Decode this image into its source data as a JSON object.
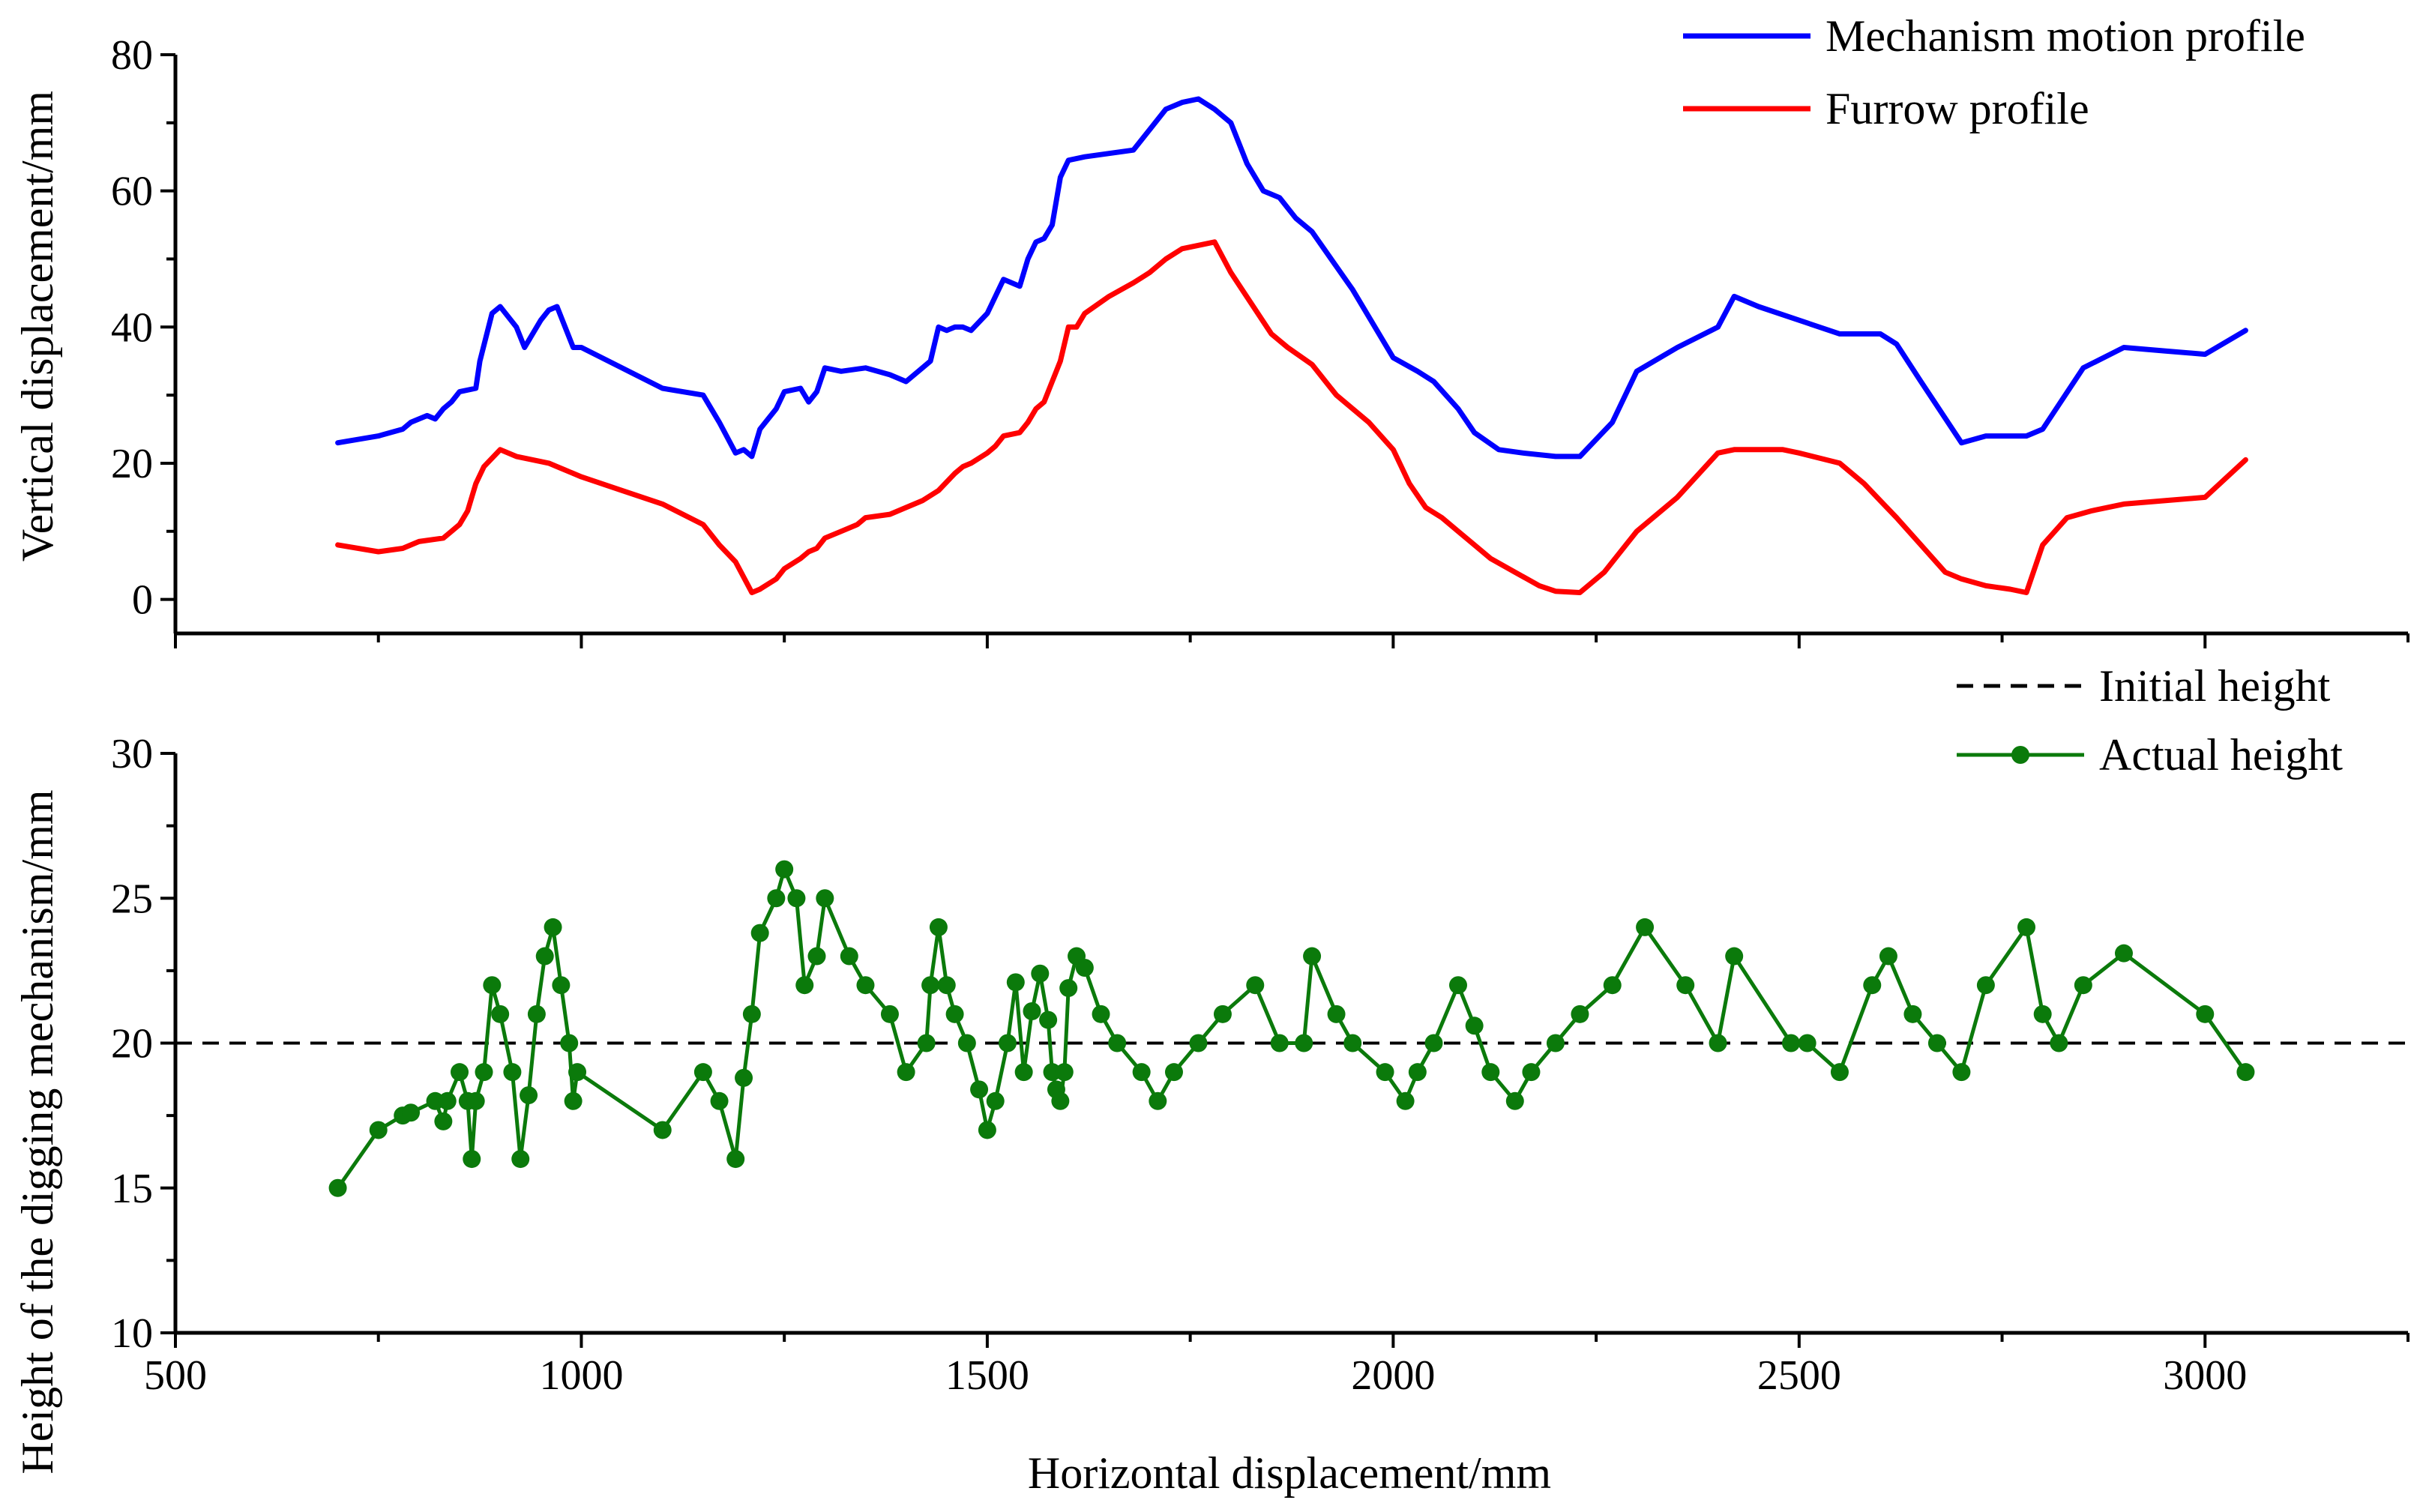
{
  "chart_data": [
    {
      "type": "line",
      "panel": "top",
      "xlabel": "",
      "ylabel": "Vertical displacement/mm",
      "xlim": [
        500,
        3250
      ],
      "ylim": [
        -5,
        80
      ],
      "yticks": [
        0,
        20,
        40,
        60,
        80
      ],
      "legend_position": "top-right",
      "series": [
        {
          "name": "Mechanism motion profile",
          "color": "#0000ff",
          "x": [
            700,
            750,
            780,
            790,
            810,
            820,
            830,
            840,
            850,
            870,
            875,
            890,
            900,
            920,
            930,
            950,
            960,
            970,
            980,
            990,
            1000,
            1050,
            1100,
            1150,
            1170,
            1190,
            1200,
            1210,
            1220,
            1240,
            1250,
            1270,
            1280,
            1290,
            1300,
            1320,
            1350,
            1380,
            1400,
            1420,
            1430,
            1440,
            1450,
            1460,
            1470,
            1480,
            1500,
            1520,
            1540,
            1550,
            1560,
            1570,
            1580,
            1590,
            1600,
            1620,
            1650,
            1680,
            1700,
            1720,
            1740,
            1760,
            1780,
            1800,
            1820,
            1840,
            1860,
            1880,
            1900,
            1950,
            2000,
            2030,
            2050,
            2080,
            2100,
            2130,
            2160,
            2200,
            2230,
            2270,
            2300,
            2350,
            2400,
            2420,
            2450,
            2500,
            2550,
            2600,
            2620,
            2650,
            2700,
            2730,
            2760,
            2780,
            2800,
            2850,
            2900,
            2950,
            3000,
            3050
          ],
          "y": [
            23,
            24,
            25,
            26,
            27,
            26.5,
            28,
            29,
            30.5,
            31,
            35,
            42,
            43,
            40,
            37,
            41,
            42.5,
            43,
            40,
            37,
            37,
            34,
            31,
            30,
            26,
            21.5,
            22,
            21,
            25,
            28,
            30.5,
            31,
            29,
            30.5,
            34,
            33.5,
            34,
            33,
            32,
            34,
            35,
            40,
            39.5,
            40,
            40,
            39.5,
            42,
            47,
            46,
            50,
            52.5,
            53,
            55,
            62,
            64.5,
            65,
            65.5,
            66,
            69,
            72,
            73,
            73.5,
            72,
            70,
            64,
            60,
            59,
            56,
            54,
            45.5,
            35.5,
            33.5,
            32,
            28,
            24.5,
            22,
            21.5,
            21,
            21,
            26,
            33.5,
            37,
            40,
            44.5,
            43,
            41,
            39,
            39,
            37.5,
            32,
            23,
            24,
            24,
            24,
            25,
            34,
            37,
            36.5,
            36,
            39.5
          ]
        },
        {
          "name": "Furrow profile",
          "color": "#ff0000",
          "x": [
            700,
            750,
            780,
            800,
            830,
            840,
            850,
            860,
            870,
            880,
            900,
            920,
            940,
            960,
            970,
            980,
            1000,
            1050,
            1100,
            1150,
            1170,
            1190,
            1210,
            1220,
            1240,
            1250,
            1270,
            1280,
            1290,
            1300,
            1320,
            1340,
            1350,
            1380,
            1400,
            1420,
            1440,
            1460,
            1470,
            1480,
            1500,
            1510,
            1520,
            1540,
            1550,
            1560,
            1570,
            1580,
            1590,
            1600,
            1610,
            1620,
            1650,
            1680,
            1700,
            1720,
            1740,
            1760,
            1780,
            1800,
            1850,
            1870,
            1900,
            1930,
            1970,
            2000,
            2020,
            2040,
            2060,
            2080,
            2100,
            2120,
            2150,
            2180,
            2200,
            2230,
            2260,
            2300,
            2350,
            2400,
            2420,
            2450,
            2480,
            2500,
            2550,
            2580,
            2600,
            2620,
            2650,
            2680,
            2700,
            2730,
            2760,
            2780,
            2800,
            2830,
            2860,
            2900,
            2950,
            3000,
            3050
          ],
          "y": [
            8,
            7,
            7.5,
            8.5,
            9,
            10,
            11,
            13,
            17,
            19.5,
            22,
            21,
            20.5,
            20,
            19.5,
            19,
            18,
            16,
            14,
            11,
            8,
            5.5,
            1,
            1.5,
            3,
            4.5,
            6,
            7,
            7.5,
            9,
            10,
            11,
            12,
            12.5,
            13.5,
            14.5,
            16,
            18.5,
            19.5,
            20,
            21.5,
            22.5,
            24,
            24.5,
            26,
            28,
            29,
            32,
            35,
            40,
            40,
            42,
            44.5,
            46.5,
            48,
            50,
            51.5,
            52,
            52.5,
            48,
            39,
            37,
            34.5,
            30,
            26,
            22,
            17,
            13.5,
            12,
            10,
            8,
            6,
            4,
            2,
            1.2,
            1,
            4,
            10,
            15,
            21.5,
            22,
            22,
            22,
            21.5,
            20,
            17,
            14.5,
            12,
            8,
            4,
            3,
            2,
            1.5,
            1,
            8,
            12,
            13,
            14,
            14.5,
            15,
            20.5
          ]
        }
      ]
    },
    {
      "type": "line",
      "panel": "bottom",
      "xlabel": "Horizontal displacement/mm",
      "ylabel": "Height of the digging mechanism/mm",
      "xlim": [
        500,
        3250
      ],
      "ylim": [
        10,
        30
      ],
      "xticks": [
        500,
        1000,
        1500,
        2000,
        2500,
        3000
      ],
      "yticks": [
        10,
        15,
        20,
        25,
        30
      ],
      "legend_position": "top-right",
      "series": [
        {
          "name": "Initial height",
          "color": "#000000",
          "style": "dashed",
          "x": [
            500,
            3250
          ],
          "y": [
            20,
            20
          ]
        },
        {
          "name": "Actual height",
          "color": "#0b7a0b",
          "style": "solid-with-markers",
          "x": [
            700,
            750,
            780,
            790,
            820,
            830,
            835,
            850,
            860,
            865,
            870,
            880,
            890,
            900,
            915,
            925,
            935,
            945,
            955,
            965,
            975,
            985,
            990,
            995,
            1100,
            1150,
            1170,
            1190,
            1200,
            1210,
            1220,
            1240,
            1250,
            1265,
            1275,
            1290,
            1300,
            1330,
            1350,
            1380,
            1400,
            1425,
            1430,
            1440,
            1450,
            1460,
            1475,
            1490,
            1500,
            1510,
            1525,
            1535,
            1545,
            1555,
            1565,
            1575,
            1580,
            1585,
            1590,
            1595,
            1600,
            1610,
            1620,
            1640,
            1660,
            1690,
            1710,
            1730,
            1760,
            1790,
            1830,
            1860,
            1890,
            1900,
            1930,
            1950,
            1990,
            2015,
            2030,
            2050,
            2080,
            2100,
            2120,
            2150,
            2170,
            2200,
            2230,
            2270,
            2310,
            2360,
            2400,
            2420,
            2490,
            2510,
            2550,
            2590,
            2610,
            2640,
            2670,
            2700,
            2730,
            2780,
            2800,
            2820,
            2850,
            2900,
            3000,
            3050
          ],
          "y": [
            15,
            17,
            17.5,
            17.6,
            18,
            17.3,
            18,
            19,
            18,
            16,
            18,
            19,
            22,
            21,
            19,
            16,
            18.2,
            21,
            23,
            24,
            22,
            20,
            18,
            19,
            17,
            19,
            18,
            16,
            18.8,
            21,
            23.8,
            25,
            26,
            25,
            22,
            23,
            25,
            23,
            22,
            21,
            19,
            20,
            22,
            24,
            22,
            21,
            20,
            18.4,
            17,
            18,
            20,
            22.1,
            19,
            21.1,
            22.4,
            20.8,
            19,
            18.4,
            18,
            19,
            21.9,
            23,
            22.6,
            21,
            20,
            19,
            18,
            19,
            20,
            21,
            22,
            20,
            20,
            23,
            21,
            20,
            19,
            18,
            19,
            20,
            22,
            20.6,
            19,
            18,
            19,
            20,
            21,
            22,
            24,
            22,
            20,
            23,
            20,
            20,
            19,
            22,
            23,
            21,
            20,
            19,
            22,
            24,
            21,
            20,
            22,
            23.1,
            21,
            19
          ]
        }
      ]
    }
  ]
}
